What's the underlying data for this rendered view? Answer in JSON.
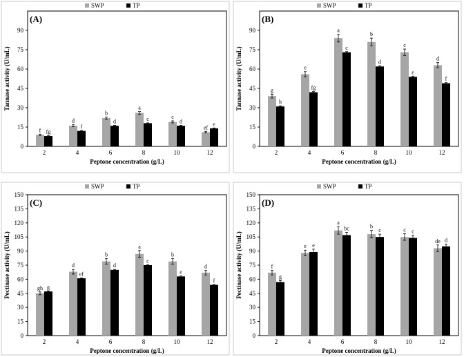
{
  "chart_data": [
    {
      "type": "bar",
      "panel": "(A)",
      "categories": [
        "2",
        "4",
        "6",
        "8",
        "10",
        "12"
      ],
      "series": [
        {
          "name": "SWP",
          "color": "#a6a6a6",
          "values": [
            9,
            16,
            22,
            26,
            19,
            11
          ],
          "errors": [
            0.5,
            0.8,
            0.8,
            1.0,
            0.8,
            0.6
          ],
          "labels": [
            "f",
            "d",
            "b",
            "a",
            "c",
            "ef"
          ]
        },
        {
          "name": "TP",
          "color": "#000000",
          "values": [
            8,
            12,
            16,
            18,
            16,
            14
          ],
          "errors": [
            0.3,
            0.3,
            0.3,
            0.3,
            0.3,
            0.3
          ],
          "labels": [
            "fg",
            "f",
            "d",
            "c",
            "d",
            "e"
          ]
        }
      ],
      "xlabel": "Peptone concentration (g/L)",
      "ylabel": "Tannase activity (U/mL)",
      "ylim": [
        0,
        105
      ],
      "yticks": [
        0,
        15,
        30,
        45,
        60,
        75,
        90
      ],
      "legend": "top-center"
    },
    {
      "type": "bar",
      "panel": "(B)",
      "categories": [
        "2",
        "4",
        "6",
        "8",
        "10",
        "12"
      ],
      "series": [
        {
          "name": "SWP",
          "color": "#a6a6a6",
          "values": [
            39,
            56,
            84,
            81,
            73,
            63
          ],
          "errors": [
            1.5,
            2,
            3,
            3,
            2.5,
            2
          ],
          "labels": [
            "g",
            "e",
            "a",
            "b",
            "c",
            "d"
          ]
        },
        {
          "name": "TP",
          "color": "#000000",
          "values": [
            31,
            42,
            73,
            62,
            54,
            49
          ],
          "errors": [
            0.5,
            0.5,
            0.5,
            0.5,
            0.5,
            0.5
          ],
          "labels": [
            "h",
            "fg",
            "c",
            "d",
            "e",
            "f"
          ]
        }
      ],
      "xlabel": "Peptone concentration (g/L)",
      "ylabel": "Tannase activity (U/mL)",
      "ylim": [
        0,
        105
      ],
      "yticks": [
        0,
        15,
        30,
        45,
        60,
        75,
        90
      ],
      "legend": "top-center"
    },
    {
      "type": "bar",
      "panel": "(C)",
      "categories": [
        "2",
        "4",
        "6",
        "8",
        "10",
        "12"
      ],
      "series": [
        {
          "name": "SWP",
          "color": "#a6a6a6",
          "values": [
            45,
            68,
            79,
            87,
            79,
            67
          ],
          "errors": [
            1.5,
            2.5,
            3,
            3.5,
            3,
            2.5
          ],
          "labels": [
            "gh",
            "d",
            "b",
            "a",
            "b",
            "d"
          ]
        },
        {
          "name": "TP",
          "color": "#000000",
          "values": [
            47,
            61,
            70,
            75,
            63,
            54
          ],
          "errors": [
            0.5,
            0.5,
            0.5,
            0.5,
            0.5,
            0.5
          ],
          "labels": [
            "g",
            "ef",
            "d",
            "c",
            "e",
            "f"
          ]
        }
      ],
      "xlabel": "Peptone concentration (g/L)",
      "ylabel": "Pectinase activity (U/mL)",
      "ylim": [
        0,
        150
      ],
      "yticks": [
        0,
        15,
        30,
        45,
        60,
        75,
        90,
        105,
        120,
        135,
        150
      ],
      "legend": "top-center"
    },
    {
      "type": "bar",
      "panel": "(D)",
      "categories": [
        "2",
        "4",
        "6",
        "8",
        "10",
        "12"
      ],
      "series": [
        {
          "name": "SWP",
          "color": "#a6a6a6",
          "values": [
            67,
            88,
            112,
            108,
            105,
            93
          ],
          "errors": [
            2.5,
            3,
            4,
            4,
            3.5,
            3.5
          ],
          "labels": [
            "f",
            "e",
            "a",
            "b",
            "c",
            "de"
          ]
        },
        {
          "name": "TP",
          "color": "#000000",
          "values": [
            57,
            89,
            107,
            105,
            104,
            95
          ],
          "errors": [
            1.5,
            3,
            3,
            3,
            3,
            2.5
          ],
          "labels": [
            "g",
            "e",
            "bc",
            "c",
            "c",
            "d"
          ]
        }
      ],
      "xlabel": "Peptone concentration (g/L)",
      "ylabel": "Pectinase activity (U/mL)",
      "ylim": [
        0,
        150
      ],
      "yticks": [
        0,
        15,
        30,
        45,
        60,
        75,
        90,
        105,
        120,
        135,
        150
      ],
      "legend": "top-center"
    }
  ]
}
